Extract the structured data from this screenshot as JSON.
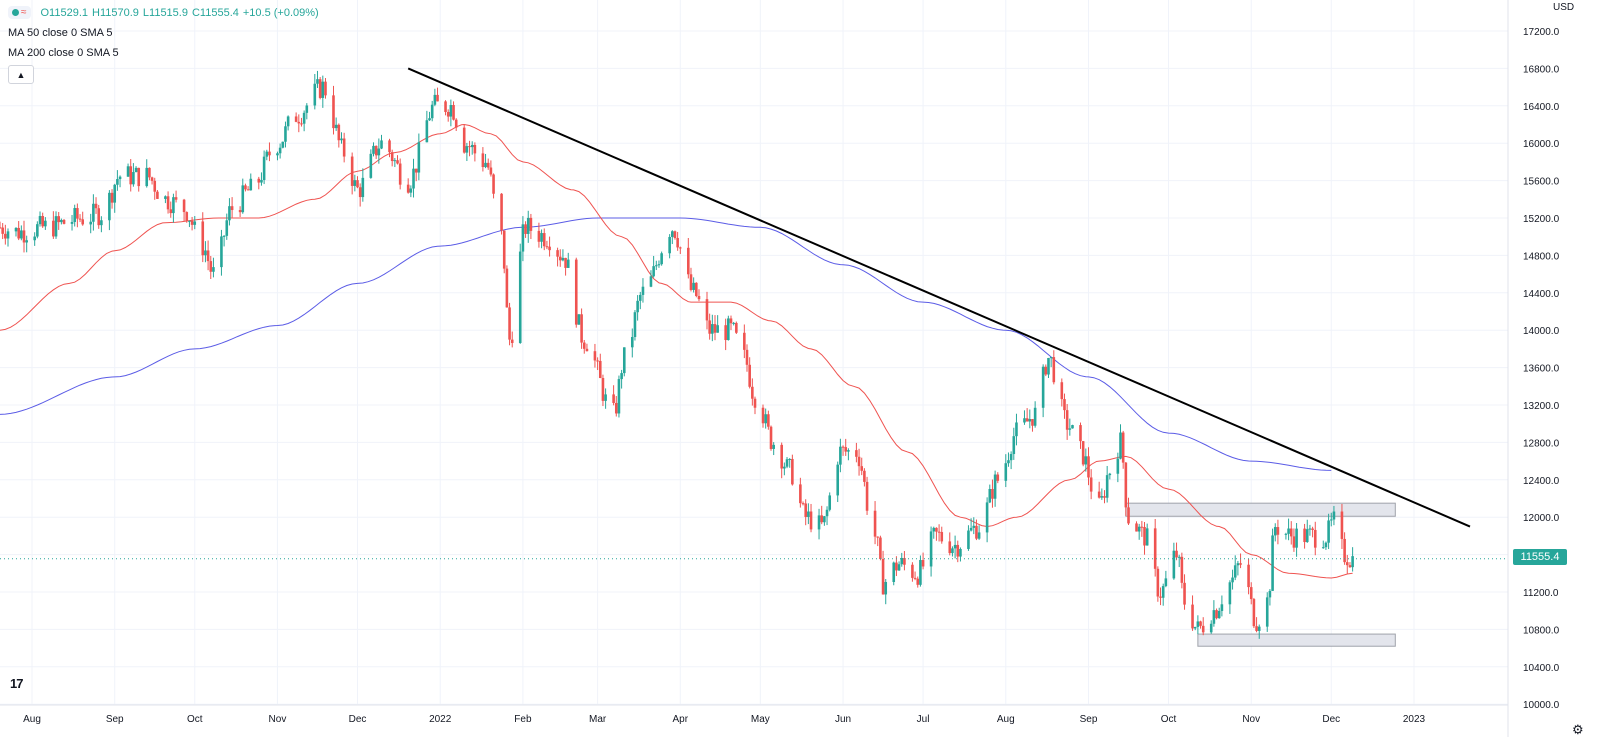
{
  "legend": {
    "symbol_icon": "wave-icon",
    "ohlc_open": "O11529.1",
    "ohlc_high": "H11570.9",
    "ohlc_low": "L11515.9",
    "ohlc_close": "C11555.4",
    "ohlc_change": "+10.5 (+0.09%)",
    "ma50_label": "MA 50 close 0 SMA 5",
    "ma200_label": "MA 200 close 0 SMA 5",
    "collapse_icon": "chevron-up-icon"
  },
  "currency": "USD",
  "last_price": "11555.4",
  "colors": {
    "up": "#26a69a",
    "down": "#ef5350",
    "ma50": "#ef5350",
    "ma200": "#5b5ce6",
    "trendline": "#000000",
    "zone_fill": "#e0e3eb"
  },
  "chart_data": {
    "type": "candlestick",
    "title": "",
    "xlabel": "",
    "ylabel": "",
    "ylim": [
      10000,
      17400
    ],
    "y_ticks": [
      "17200.0",
      "16800.0",
      "16400.0",
      "16000.0",
      "15600.0",
      "15200.0",
      "14800.0",
      "14400.0",
      "14000.0",
      "13600.0",
      "13200.0",
      "12800.0",
      "12400.0",
      "12000.0",
      "11600.0",
      "11200.0",
      "10800.0",
      "10400.0",
      "10000.0"
    ],
    "x_ticks": [
      {
        "label": "Aug",
        "date": "2021-08-01"
      },
      {
        "label": "Sep",
        "date": "2021-09-01"
      },
      {
        "label": "Oct",
        "date": "2021-10-01"
      },
      {
        "label": "Nov",
        "date": "2021-11-01"
      },
      {
        "label": "Dec",
        "date": "2021-12-01"
      },
      {
        "label": "2022",
        "date": "2022-01-01"
      },
      {
        "label": "Feb",
        "date": "2022-02-01"
      },
      {
        "label": "Mar",
        "date": "2022-03-01"
      },
      {
        "label": "Apr",
        "date": "2022-04-01"
      },
      {
        "label": "May",
        "date": "2022-05-01"
      },
      {
        "label": "Jun",
        "date": "2022-06-01"
      },
      {
        "label": "Jul",
        "date": "2022-07-01"
      },
      {
        "label": "Aug",
        "date": "2022-08-01"
      },
      {
        "label": "Sep",
        "date": "2022-09-01"
      },
      {
        "label": "Oct",
        "date": "2022-10-01"
      },
      {
        "label": "Nov",
        "date": "2022-11-01"
      },
      {
        "label": "Dec",
        "date": "2022-12-01"
      },
      {
        "label": "2023",
        "date": "2023-01-01"
      }
    ],
    "x_range": [
      "2021-07-20",
      "2023-01-22"
    ],
    "price_anchors": [
      [
        "2021-07-20",
        15100
      ],
      [
        "2021-07-27",
        15050
      ],
      [
        "2021-08-06",
        15100
      ],
      [
        "2021-08-20",
        15200
      ],
      [
        "2021-08-27",
        15250
      ],
      [
        "2021-09-03",
        15650
      ],
      [
        "2021-09-13",
        15650
      ],
      [
        "2021-09-20",
        15400
      ],
      [
        "2021-09-27",
        15300
      ],
      [
        "2021-10-04",
        14900
      ],
      [
        "2021-10-08",
        14600
      ],
      [
        "2021-10-15",
        15300
      ],
      [
        "2021-10-22",
        15500
      ],
      [
        "2021-11-01",
        16000
      ],
      [
        "2021-11-08",
        16300
      ],
      [
        "2021-11-18",
        16600
      ],
      [
        "2021-11-26",
        15900
      ],
      [
        "2021-12-01",
        15500
      ],
      [
        "2021-12-10",
        16000
      ],
      [
        "2021-12-20",
        15600
      ],
      [
        "2021-12-30",
        16400
      ],
      [
        "2022-01-05",
        16400
      ],
      [
        "2022-01-10",
        16000
      ],
      [
        "2022-01-18",
        15800
      ],
      [
        "2022-01-24",
        15000
      ],
      [
        "2022-01-27",
        13900
      ],
      [
        "2022-02-02",
        15100
      ],
      [
        "2022-02-10",
        15000
      ],
      [
        "2022-02-16",
        14800
      ],
      [
        "2022-02-24",
        13900
      ],
      [
        "2022-03-07",
        13100
      ],
      [
        "2022-03-11",
        13700
      ],
      [
        "2022-03-18",
        14400
      ],
      [
        "2022-03-29",
        15100
      ],
      [
        "2022-04-06",
        14400
      ],
      [
        "2022-04-12",
        14000
      ],
      [
        "2022-04-20",
        14000
      ],
      [
        "2022-04-25",
        13700
      ],
      [
        "2022-04-29",
        13300
      ],
      [
        "2022-05-06",
        12800
      ],
      [
        "2022-05-12",
        12500
      ],
      [
        "2022-05-18",
        12000
      ],
      [
        "2022-05-24",
        11900
      ],
      [
        "2022-05-31",
        12700
      ],
      [
        "2022-06-06",
        12700
      ],
      [
        "2022-06-13",
        11800
      ],
      [
        "2022-06-16",
        11300
      ],
      [
        "2022-06-22",
        11500
      ],
      [
        "2022-06-29",
        11400
      ],
      [
        "2022-07-06",
        11800
      ],
      [
        "2022-07-13",
        11700
      ],
      [
        "2022-07-22",
        11900
      ],
      [
        "2022-07-29",
        12400
      ],
      [
        "2022-08-05",
        12900
      ],
      [
        "2022-08-12",
        13100
      ],
      [
        "2022-08-17",
        13700
      ],
      [
        "2022-08-24",
        13000
      ],
      [
        "2022-08-29",
        12700
      ],
      [
        "2022-09-05",
        12100
      ],
      [
        "2022-09-09",
        12500
      ],
      [
        "2022-09-13",
        12800
      ],
      [
        "2022-09-16",
        12000
      ],
      [
        "2022-09-22",
        11800
      ],
      [
        "2022-09-28",
        11200
      ],
      [
        "2022-10-04",
        11600
      ],
      [
        "2022-10-07",
        11100
      ],
      [
        "2022-10-12",
        10800
      ],
      [
        "2022-10-18",
        11000
      ],
      [
        "2022-10-24",
        11300
      ],
      [
        "2022-10-28",
        11500
      ],
      [
        "2022-11-03",
        10900
      ],
      [
        "2022-11-07",
        11100
      ],
      [
        "2022-11-10",
        11900
      ],
      [
        "2022-11-16",
        11800
      ],
      [
        "2022-11-23",
        11800
      ],
      [
        "2022-11-29",
        11800
      ],
      [
        "2022-12-02",
        11950
      ],
      [
        "2022-12-06",
        11600
      ],
      [
        "2022-12-09",
        11555
      ]
    ],
    "ma50_anchors": [
      [
        "2021-07-20",
        14000
      ],
      [
        "2021-08-15",
        14500
      ],
      [
        "2021-09-01",
        14850
      ],
      [
        "2021-09-20",
        15150
      ],
      [
        "2021-10-10",
        15200
      ],
      [
        "2021-10-25",
        15200
      ],
      [
        "2021-11-15",
        15400
      ],
      [
        "2021-12-01",
        15700
      ],
      [
        "2021-12-15",
        15900
      ],
      [
        "2022-01-01",
        16100
      ],
      [
        "2022-01-10",
        16200
      ],
      [
        "2022-01-20",
        16100
      ],
      [
        "2022-02-01",
        15800
      ],
      [
        "2022-02-20",
        15500
      ],
      [
        "2022-03-10",
        15000
      ],
      [
        "2022-03-25",
        14500
      ],
      [
        "2022-04-05",
        14300
      ],
      [
        "2022-04-20",
        14300
      ],
      [
        "2022-05-05",
        14100
      ],
      [
        "2022-05-20",
        13800
      ],
      [
        "2022-06-05",
        13400
      ],
      [
        "2022-06-25",
        12700
      ],
      [
        "2022-07-15",
        12000
      ],
      [
        "2022-07-25",
        11900
      ],
      [
        "2022-08-05",
        12000
      ],
      [
        "2022-08-25",
        12400
      ],
      [
        "2022-09-05",
        12600
      ],
      [
        "2022-09-15",
        12650
      ],
      [
        "2022-10-01",
        12300
      ],
      [
        "2022-10-20",
        11900
      ],
      [
        "2022-11-01",
        11600
      ],
      [
        "2022-11-15",
        11400
      ],
      [
        "2022-12-01",
        11350
      ],
      [
        "2022-12-09",
        11400
      ]
    ],
    "ma200_anchors": [
      [
        "2021-07-20",
        13100
      ],
      [
        "2021-09-01",
        13500
      ],
      [
        "2021-10-01",
        13800
      ],
      [
        "2021-11-01",
        14050
      ],
      [
        "2021-12-01",
        14500
      ],
      [
        "2022-01-01",
        14900
      ],
      [
        "2022-02-01",
        15100
      ],
      [
        "2022-03-01",
        15200
      ],
      [
        "2022-04-01",
        15200
      ],
      [
        "2022-05-01",
        15100
      ],
      [
        "2022-06-01",
        14700
      ],
      [
        "2022-07-01",
        14300
      ],
      [
        "2022-08-01",
        14000
      ],
      [
        "2022-09-01",
        13500
      ],
      [
        "2022-10-01",
        12900
      ],
      [
        "2022-11-01",
        12600
      ],
      [
        "2022-12-01",
        12500
      ]
    ],
    "trendline": {
      "from": [
        "2021-12-20",
        16800
      ],
      "to": [
        "2023-01-22",
        11900
      ]
    },
    "zones": [
      {
        "from": [
          "2022-09-15",
          12150
        ],
        "to": [
          "2022-12-25",
          12010
        ]
      },
      {
        "from": [
          "2022-10-12",
          10750
        ],
        "to": [
          "2022-12-25",
          10620
        ]
      }
    ]
  }
}
